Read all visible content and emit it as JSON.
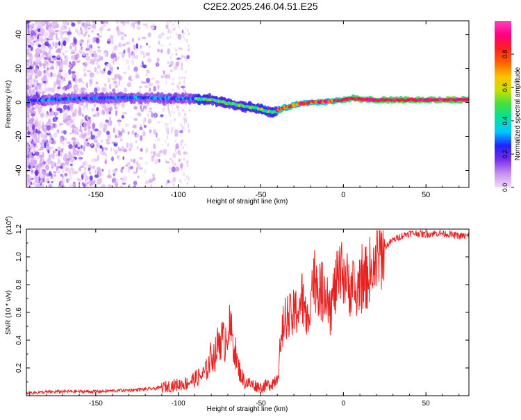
{
  "title": "C2E2.2025.246.04.51.E25",
  "chart_data": [
    {
      "type": "heatmap",
      "xlabel": "Height of straight line (km)",
      "ylabel": "Frequency (Hz)",
      "xlim": [
        -192,
        76
      ],
      "ylim": [
        -50,
        48
      ],
      "xticks": [
        -150,
        -100,
        -50,
        0,
        50
      ],
      "yticks": [
        -40,
        -20,
        0,
        20,
        40
      ],
      "colorbar": {
        "label": "Normalized spectral amplitude",
        "range": [
          0,
          1
        ],
        "ticks": [
          "0.0",
          "0.2",
          "0.4",
          "0.6",
          "0.8"
        ],
        "colors": [
          "#f2dcf8",
          "#c890ee",
          "#7a2cea",
          "#2020ff",
          "#00c8ff",
          "#00e0a0",
          "#40e040",
          "#c8e000",
          "#ffc000",
          "#ff6000",
          "#ff2020",
          "#ff0080",
          "#ff40c0"
        ]
      },
      "ridge_x": [
        -192,
        -170,
        -150,
        -130,
        -110,
        -90,
        -80,
        -72,
        -65,
        -55,
        -50,
        -45,
        -42,
        -38,
        -35,
        -30,
        -25,
        -20,
        -10,
        0,
        5,
        15,
        30,
        50,
        76
      ],
      "ridge_freq": [
        1,
        2,
        2.5,
        2.8,
        2.5,
        2.2,
        1.5,
        0,
        -1.5,
        -3,
        -4,
        -5.5,
        -6,
        -4,
        -3,
        -1.5,
        -0.5,
        0,
        0.5,
        1.5,
        2.5,
        1.5,
        1.5,
        1.5,
        1.5
      ]
    },
    {
      "type": "line",
      "xlabel": "Height of straight line (km)",
      "ylabel": "SNR (10 * v/v)",
      "multiplier": "(x10",
      "multiplier_exp": "4",
      "multiplier_close": ")",
      "xlim": [
        -192,
        76
      ],
      "ylim": [
        0,
        1.2
      ],
      "xticks": [
        -150,
        -100,
        -50,
        0,
        50
      ],
      "yticks": [
        "0.2",
        "0.4",
        "0.6",
        "0.8",
        "1.0",
        "1.2"
      ],
      "color": "#e82020",
      "x": [
        -192,
        -170,
        -150,
        -130,
        -115,
        -105,
        -100,
        -95,
        -90,
        -85,
        -82,
        -80,
        -78,
        -75,
        -72,
        -70,
        -68,
        -66,
        -64,
        -62,
        -60,
        -55,
        -50,
        -45,
        -42,
        -40,
        -37,
        -35,
        -33,
        -30,
        -28,
        -25,
        -22,
        -20,
        -18,
        -15,
        -12,
        -10,
        -8,
        -5,
        -2,
        0,
        3,
        5,
        8,
        10,
        12,
        15,
        18,
        20,
        22,
        25,
        28,
        30,
        35,
        40,
        45,
        50,
        55,
        60,
        65,
        70,
        76
      ],
      "y": [
        0.02,
        0.03,
        0.03,
        0.04,
        0.05,
        0.07,
        0.08,
        0.09,
        0.12,
        0.15,
        0.2,
        0.3,
        0.28,
        0.42,
        0.38,
        0.5,
        0.45,
        0.35,
        0.22,
        0.15,
        0.1,
        0.08,
        0.06,
        0.08,
        0.1,
        0.15,
        0.45,
        0.6,
        0.55,
        0.58,
        0.62,
        0.7,
        0.5,
        0.75,
        0.85,
        0.8,
        0.72,
        0.82,
        0.62,
        0.78,
        0.85,
        0.9,
        0.78,
        0.82,
        0.7,
        0.86,
        0.8,
        0.88,
        0.93,
        0.98,
        1.03,
        1.07,
        1.1,
        1.12,
        1.15,
        1.17,
        1.17,
        1.16,
        1.17,
        1.17,
        1.16,
        1.15,
        1.15
      ]
    }
  ]
}
